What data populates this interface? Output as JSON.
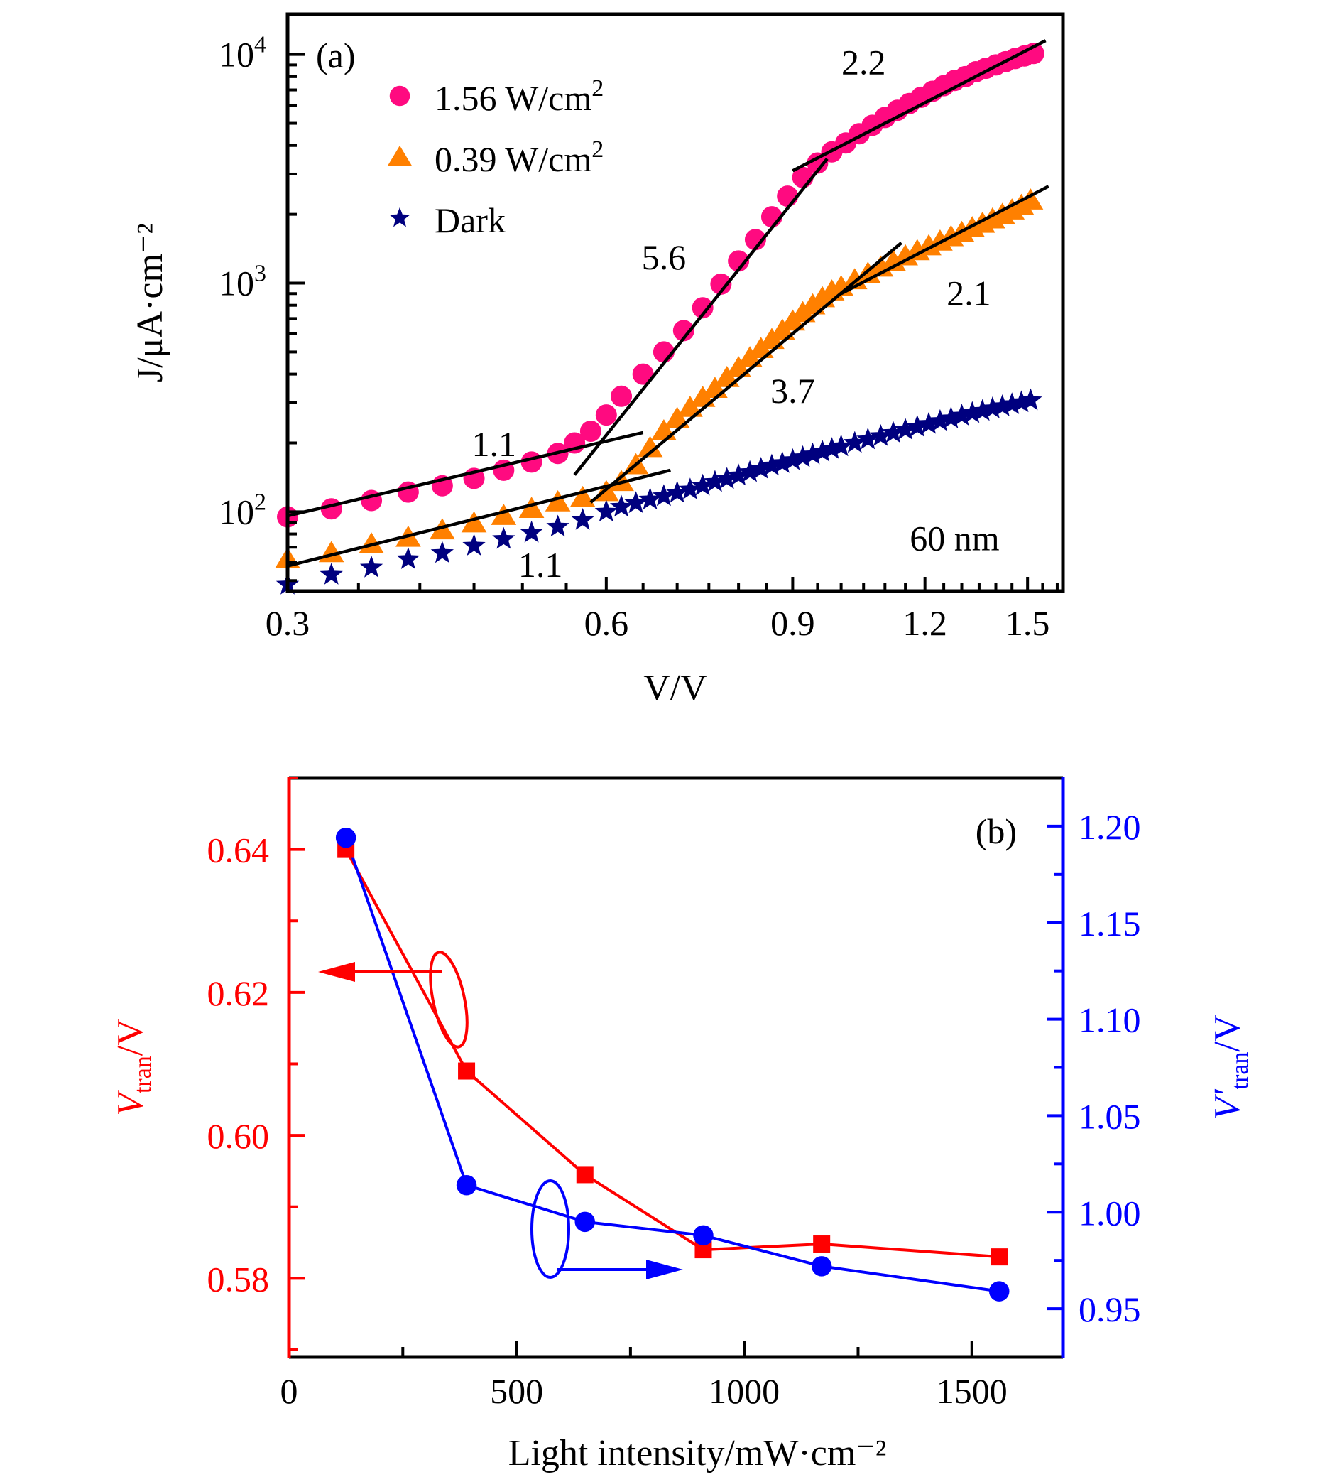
{
  "chart_data": [
    {
      "id": "a",
      "type": "scatter",
      "panel_label": "(a)",
      "xscale": "log",
      "yscale": "log",
      "xlabel": "V/V",
      "ylabel": "J/μA·cm⁻²",
      "xlim": [
        0.3,
        1.62
      ],
      "ylim": [
        45,
        15000
      ],
      "xticks": [
        0.3,
        0.6,
        0.9,
        1.2,
        1.5
      ],
      "xtick_labels": [
        "0.3",
        "0.6",
        "0.9",
        "1.2",
        "1.5"
      ],
      "yticks": [
        100,
        1000,
        10000
      ],
      "ytick_labels": [
        {
          "base": "10",
          "exp": "2"
        },
        {
          "base": "10",
          "exp": "3"
        },
        {
          "base": "10",
          "exp": "4"
        }
      ],
      "legend": {
        "placement": "top-left",
        "entries": [
          {
            "label": "1.56 W/cm",
            "sup": "2",
            "marker": "circle",
            "color": "#ff0a80"
          },
          {
            "label": "0.39 W/cm",
            "sup": "2",
            "marker": "triangle",
            "color": "#ff8000"
          },
          {
            "label": "Dark",
            "sup": "",
            "marker": "star",
            "color": "#00007f"
          }
        ]
      },
      "series": [
        {
          "name": "1.56 W/cm2",
          "marker": "circle",
          "color": "#ff0a80",
          "x": [
            0.3,
            0.33,
            0.36,
            0.39,
            0.42,
            0.45,
            0.48,
            0.51,
            0.54,
            0.56,
            0.58,
            0.6,
            0.62,
            0.65,
            0.68,
            0.71,
            0.74,
            0.77,
            0.8,
            0.83,
            0.86,
            0.89,
            0.92,
            0.95,
            0.98,
            1.01,
            1.04,
            1.07,
            1.1,
            1.13,
            1.16,
            1.19,
            1.22,
            1.25,
            1.28,
            1.31,
            1.34,
            1.37,
            1.4,
            1.43,
            1.46,
            1.49,
            1.52
          ],
          "y": [
            95,
            103,
            112,
            122,
            130,
            140,
            152,
            165,
            180,
            200,
            225,
            265,
            320,
            400,
            500,
            620,
            780,
            990,
            1250,
            1550,
            1950,
            2400,
            2900,
            3350,
            3750,
            4100,
            4500,
            4900,
            5300,
            5700,
            6100,
            6500,
            6900,
            7300,
            7700,
            8000,
            8400,
            8700,
            9000,
            9300,
            9600,
            9850,
            10100
          ]
        },
        {
          "name": "0.39 W/cm2",
          "marker": "triangle",
          "color": "#ff8000",
          "x": [
            0.3,
            0.33,
            0.36,
            0.39,
            0.42,
            0.45,
            0.48,
            0.51,
            0.54,
            0.57,
            0.6,
            0.62,
            0.64,
            0.66,
            0.68,
            0.7,
            0.72,
            0.74,
            0.76,
            0.78,
            0.8,
            0.82,
            0.84,
            0.86,
            0.88,
            0.9,
            0.92,
            0.94,
            0.96,
            0.98,
            1.0,
            1.03,
            1.06,
            1.09,
            1.12,
            1.15,
            1.18,
            1.21,
            1.24,
            1.27,
            1.3,
            1.33,
            1.36,
            1.39,
            1.42,
            1.45,
            1.48,
            1.51
          ],
          "y": [
            62,
            66,
            72,
            77,
            83,
            89,
            96,
            103,
            110,
            115,
            122,
            135,
            160,
            190,
            225,
            255,
            285,
            315,
            345,
            385,
            425,
            470,
            515,
            565,
            620,
            680,
            740,
            800,
            860,
            920,
            960,
            1030,
            1100,
            1170,
            1240,
            1310,
            1380,
            1450,
            1520,
            1590,
            1660,
            1740,
            1820,
            1900,
            1990,
            2080,
            2180,
            2300
          ]
        },
        {
          "name": "Dark",
          "marker": "star",
          "color": "#00007f",
          "x": [
            0.3,
            0.33,
            0.36,
            0.39,
            0.42,
            0.45,
            0.48,
            0.51,
            0.54,
            0.57,
            0.6,
            0.62,
            0.64,
            0.66,
            0.68,
            0.7,
            0.72,
            0.74,
            0.76,
            0.78,
            0.8,
            0.82,
            0.84,
            0.86,
            0.88,
            0.9,
            0.92,
            0.94,
            0.96,
            0.98,
            1.0,
            1.03,
            1.06,
            1.09,
            1.12,
            1.15,
            1.18,
            1.21,
            1.24,
            1.27,
            1.3,
            1.33,
            1.36,
            1.39,
            1.42,
            1.45,
            1.48,
            1.51
          ],
          "y": [
            48,
            53,
            57,
            62,
            66,
            71,
            76,
            81,
            86,
            92,
            100,
            105,
            109,
            113,
            117,
            121,
            125,
            130,
            135,
            139,
            144,
            149,
            154,
            159,
            163,
            168,
            173,
            178,
            183,
            188,
            193,
            200,
            207,
            214,
            221,
            228,
            235,
            242,
            249,
            256,
            263,
            270,
            276,
            283,
            289,
            295,
            301,
            307
          ]
        }
      ],
      "fit_lines": [
        {
          "series": "1.56 W/cm2",
          "slope_label": "1.1",
          "x": [
            0.3,
            0.65
          ],
          "y": [
            96,
            222
          ]
        },
        {
          "series": "1.56 W/cm2",
          "slope_label": "5.6",
          "x": [
            0.56,
            0.97
          ],
          "y": [
            145,
            3500
          ]
        },
        {
          "series": "1.56 W/cm2",
          "slope_label": "2.2",
          "x": [
            0.9,
            1.56
          ],
          "y": [
            3100,
            11500
          ]
        },
        {
          "series": "0.39 W/cm2",
          "slope_label": "1.1",
          "x": [
            0.3,
            0.69
          ],
          "y": [
            58,
            152
          ]
        },
        {
          "series": "0.39 W/cm2",
          "slope_label": "3.7",
          "x": [
            0.58,
            1.14
          ],
          "y": [
            110,
            1500
          ]
        },
        {
          "series": "0.39 W/cm2",
          "slope_label": "2.1",
          "x": [
            1.0,
            1.57
          ],
          "y": [
            900,
            2650
          ]
        }
      ],
      "annotations": [
        {
          "text": "1.1",
          "x": 0.47,
          "y": 175
        },
        {
          "text": "5.6",
          "x": 0.68,
          "y": 1150
        },
        {
          "text": "2.2",
          "x": 1.05,
          "y": 8200
        },
        {
          "text": "3.7",
          "x": 0.9,
          "y": 300
        },
        {
          "text": "2.1",
          "x": 1.32,
          "y": 800
        },
        {
          "text": "1.1",
          "x": 0.52,
          "y": 52
        },
        {
          "text": "60 nm",
          "x": 1.28,
          "y": 68
        }
      ]
    },
    {
      "id": "b",
      "type": "line",
      "panel_label": "(b)",
      "xlabel": "Light intensity/mW·cm⁻²",
      "xlim": [
        0,
        1700
      ],
      "xticks": [
        0,
        500,
        1000,
        1500
      ],
      "xtick_labels": [
        "0",
        "500",
        "1000",
        "1500"
      ],
      "left_axis": {
        "label_main": "V",
        "label_sub": "tran",
        "label_tail": "/V",
        "color": "#ff0000",
        "ylim": [
          0.569,
          0.65
        ],
        "yticks": [
          0.58,
          0.6,
          0.62,
          0.64
        ],
        "ytick_labels": [
          "0.58",
          "0.60",
          "0.62",
          "0.64"
        ]
      },
      "right_axis": {
        "label_main": "V′",
        "label_sub": "tran",
        "label_tail": "/V",
        "color": "#0000ff",
        "ylim": [
          0.925,
          1.225
        ],
        "yticks": [
          0.95,
          1.0,
          1.05,
          1.1,
          1.15,
          1.2
        ],
        "ytick_labels": [
          "0.95",
          "1.00",
          "1.05",
          "1.10",
          "1.15",
          "1.20"
        ]
      },
      "series": [
        {
          "name": "V_tran",
          "axis": "left",
          "marker": "square",
          "color": "#ff0000",
          "x": [
            125,
            390,
            650,
            910,
            1170,
            1560
          ],
          "y": [
            0.64,
            0.609,
            0.5945,
            0.584,
            0.5848,
            0.583
          ]
        },
        {
          "name": "V'_tran",
          "axis": "right",
          "marker": "circle",
          "color": "#0000ff",
          "x": [
            125,
            390,
            650,
            910,
            1170,
            1560
          ],
          "y": [
            1.194,
            1.014,
            0.995,
            0.988,
            0.972,
            0.959
          ]
        }
      ],
      "annotations": [
        {
          "type": "ellipse-arrow",
          "axis": "left",
          "direction": "left",
          "color": "#ff0000"
        },
        {
          "type": "ellipse-arrow",
          "axis": "right",
          "direction": "right",
          "color": "#0000ff"
        }
      ]
    }
  ]
}
